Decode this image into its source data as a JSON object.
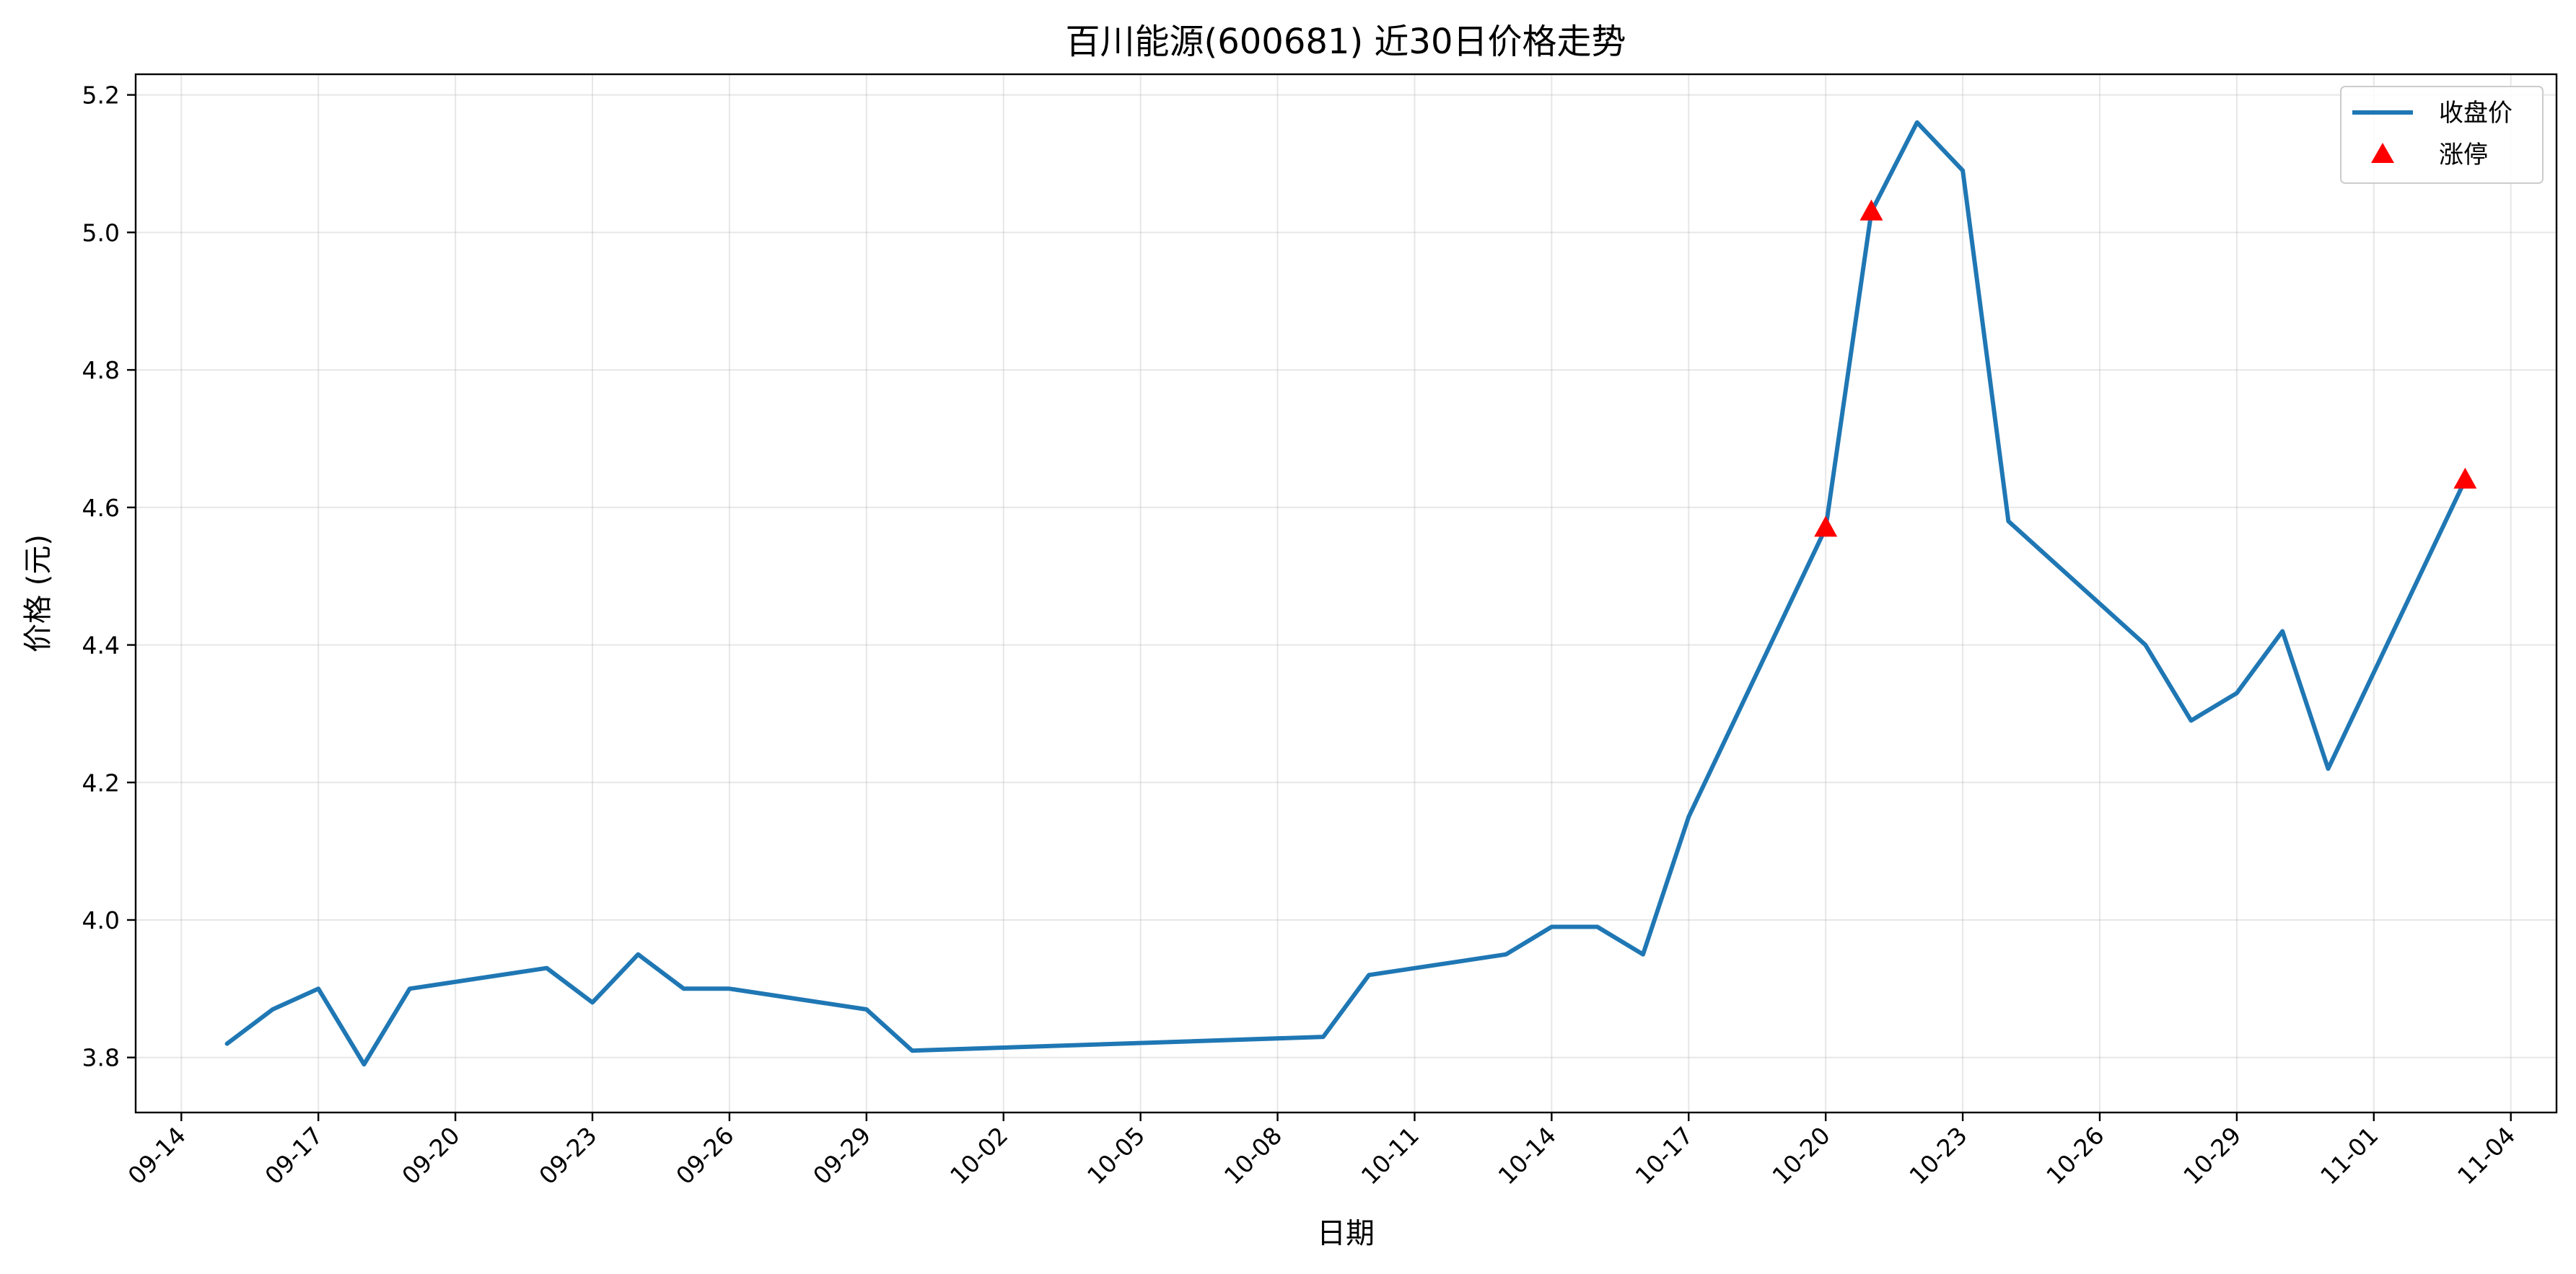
{
  "chart_data": {
    "type": "line",
    "title": "百川能源(600681) 近30日价格走势",
    "xlabel": "日期",
    "ylabel": "价格 (元)",
    "x_type": "date",
    "xlim": [
      "2024-09-13",
      "2024-11-05"
    ],
    "ylim": [
      3.72,
      5.23
    ],
    "yticks": [
      3.8,
      4.0,
      4.2,
      4.4,
      4.6,
      4.8,
      5.0,
      5.2
    ],
    "ytick_labels": [
      "3.8",
      "4.0",
      "4.2",
      "4.4",
      "4.6",
      "4.8",
      "5.0",
      "5.2"
    ],
    "xticks": [
      "2024-09-14",
      "2024-09-17",
      "2024-09-20",
      "2024-09-23",
      "2024-09-26",
      "2024-09-29",
      "2024-10-02",
      "2024-10-05",
      "2024-10-08",
      "2024-10-11",
      "2024-10-14",
      "2024-10-17",
      "2024-10-20",
      "2024-10-23",
      "2024-10-26",
      "2024-10-29",
      "2024-11-01",
      "2024-11-04"
    ],
    "xtick_labels": [
      "09-14",
      "09-17",
      "09-20",
      "09-23",
      "09-26",
      "09-29",
      "10-02",
      "10-05",
      "10-08",
      "10-11",
      "10-14",
      "10-17",
      "10-20",
      "10-23",
      "10-26",
      "10-29",
      "11-01",
      "11-04"
    ],
    "grid": true,
    "legend_position": "top-right",
    "series": [
      {
        "name": "收盘价",
        "kind": "line",
        "color": "#1f77b4",
        "points": [
          {
            "x": "2024-09-15",
            "y": 3.82
          },
          {
            "x": "2024-09-16",
            "y": 3.87
          },
          {
            "x": "2024-09-17",
            "y": 3.9
          },
          {
            "x": "2024-09-18",
            "y": 3.79
          },
          {
            "x": "2024-09-19",
            "y": 3.9
          },
          {
            "x": "2024-09-22",
            "y": 3.93
          },
          {
            "x": "2024-09-23",
            "y": 3.88
          },
          {
            "x": "2024-09-24",
            "y": 3.95
          },
          {
            "x": "2024-09-25",
            "y": 3.9
          },
          {
            "x": "2024-09-26",
            "y": 3.9
          },
          {
            "x": "2024-09-29",
            "y": 3.87
          },
          {
            "x": "2024-09-30",
            "y": 3.81
          },
          {
            "x": "2024-10-09",
            "y": 3.83
          },
          {
            "x": "2024-10-10",
            "y": 3.92
          },
          {
            "x": "2024-10-13",
            "y": 3.95
          },
          {
            "x": "2024-10-14",
            "y": 3.99
          },
          {
            "x": "2024-10-15",
            "y": 3.99
          },
          {
            "x": "2024-10-16",
            "y": 3.95
          },
          {
            "x": "2024-10-17",
            "y": 4.15
          },
          {
            "x": "2024-10-20",
            "y": 4.57
          },
          {
            "x": "2024-10-21",
            "y": 5.03
          },
          {
            "x": "2024-10-22",
            "y": 5.16
          },
          {
            "x": "2024-10-23",
            "y": 5.09
          },
          {
            "x": "2024-10-24",
            "y": 4.58
          },
          {
            "x": "2024-10-27",
            "y": 4.4
          },
          {
            "x": "2024-10-28",
            "y": 4.29
          },
          {
            "x": "2024-10-29",
            "y": 4.33
          },
          {
            "x": "2024-10-30",
            "y": 4.42
          },
          {
            "x": "2024-10-31",
            "y": 4.22
          },
          {
            "x": "2024-11-03",
            "y": 4.64
          }
        ]
      },
      {
        "name": "涨停",
        "kind": "scatter",
        "marker": "triangle",
        "color": "#ff0000",
        "points": [
          {
            "x": "2024-10-20",
            "y": 4.57
          },
          {
            "x": "2024-10-21",
            "y": 5.03
          },
          {
            "x": "2024-11-03",
            "y": 4.64
          }
        ]
      }
    ]
  }
}
